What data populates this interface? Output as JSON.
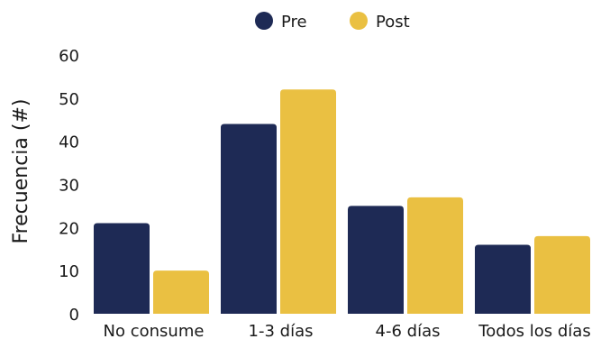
{
  "chart_data": {
    "type": "bar",
    "title": "",
    "xlabel": "",
    "ylabel": "Frecuencia (#)",
    "ylim": [
      0,
      60
    ],
    "yticks": [
      0,
      10,
      20,
      30,
      40,
      50,
      60
    ],
    "grid": false,
    "legend_position": "top-center",
    "categories": [
      "No consume",
      "1-3 días",
      "4-6 días",
      "Todos los días"
    ],
    "series": [
      {
        "name": "Pre",
        "color": "#1e2a55",
        "values": [
          21,
          44,
          25,
          16
        ]
      },
      {
        "name": "Post",
        "color": "#eac042",
        "values": [
          10,
          52,
          27,
          18
        ]
      }
    ]
  }
}
